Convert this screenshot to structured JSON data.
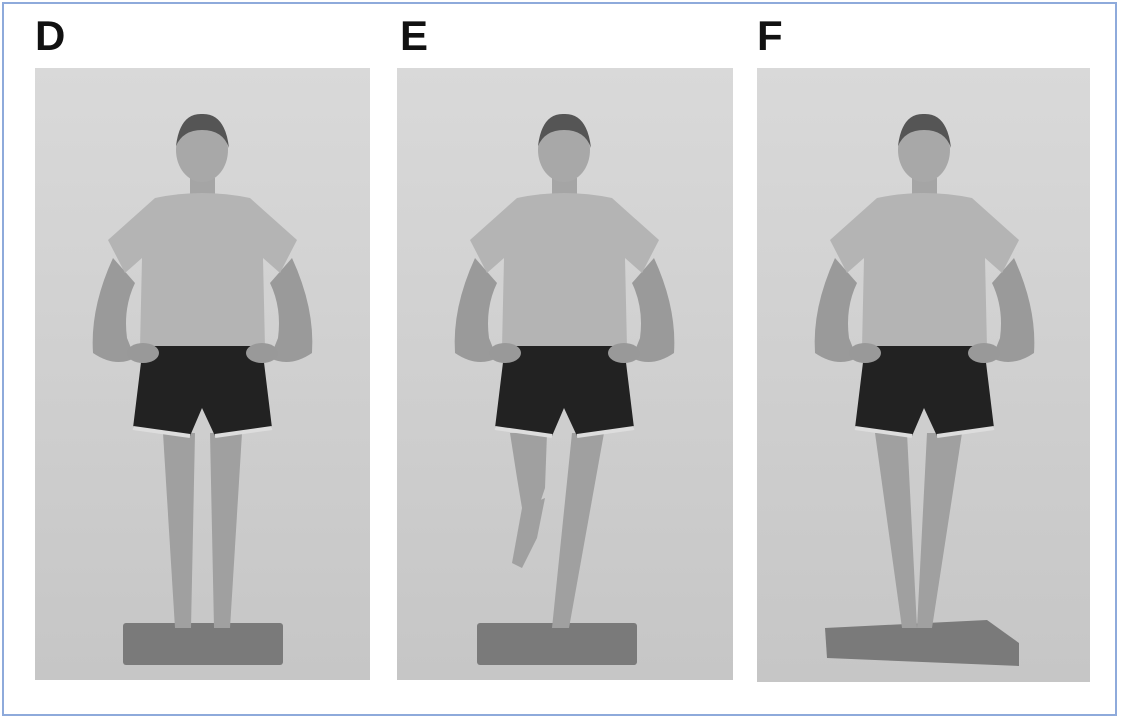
{
  "panels": [
    {
      "label": "D"
    },
    {
      "label": "E"
    },
    {
      "label": "F"
    }
  ]
}
